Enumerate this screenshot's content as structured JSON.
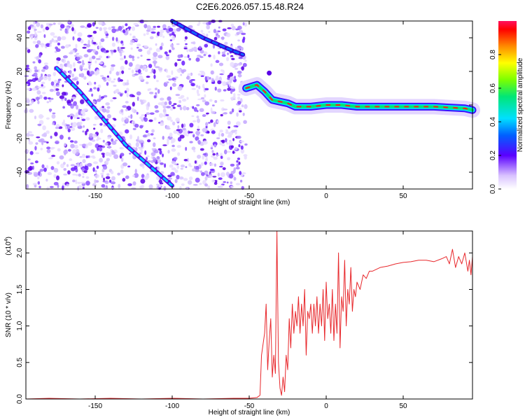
{
  "title": "C2E6.2026.057.15.48.R24",
  "chart_data": [
    {
      "type": "heatmap",
      "name": "spectrogram",
      "xlabel": "Height of straight line (km)",
      "ylabel": "Frequency (Hz)",
      "xlim": [
        -195,
        95
      ],
      "ylim": [
        -50,
        50
      ],
      "xticks": [
        -150,
        -100,
        -50,
        0,
        50
      ],
      "yticks": [
        -40,
        -20,
        0,
        20,
        40
      ],
      "colorbar": {
        "label": "Normalized spectral amplitude",
        "range": [
          0,
          1
        ],
        "ticks": [
          0.0,
          0.2,
          0.4,
          0.6,
          0.8
        ]
      },
      "features": [
        {
          "name": "noise-region",
          "x_range": [
            -195,
            -52
          ],
          "y_range": [
            -50,
            50
          ]
        },
        {
          "name": "diagonal-track-lower",
          "x": [
            -175,
            -160,
            -145,
            -130,
            -115,
            -100
          ],
          "y": [
            22,
            8,
            -8,
            -24,
            -36,
            -48
          ]
        },
        {
          "name": "diagonal-track-upper",
          "x": [
            -100,
            -90,
            -80,
            -70,
            -60,
            -54
          ],
          "y": [
            50,
            45,
            40,
            36,
            32,
            30
          ]
        },
        {
          "name": "main-carrier",
          "x": [
            -52,
            -45,
            -40,
            -35,
            -30,
            -25,
            -20,
            -10,
            0,
            10,
            20,
            30,
            50,
            70,
            90,
            95
          ],
          "y": [
            10,
            12,
            8,
            3,
            2,
            1,
            -1,
            -1,
            0,
            0,
            -1,
            -1,
            -1,
            -1,
            -2,
            -3
          ]
        }
      ]
    },
    {
      "type": "line",
      "name": "snr",
      "xlabel": "Height of straight line (km)",
      "ylabel": "SNR (10 * v/v)",
      "multiplier": "(x10",
      "multiplier_exp": "4",
      "xlim": [
        -195,
        95
      ],
      "ylim": [
        0,
        2.3
      ],
      "xticks": [
        -150,
        -100,
        -50,
        0,
        50
      ],
      "yticks": [
        0.0,
        0.5,
        1.0,
        1.5,
        2.0
      ],
      "series": [
        {
          "name": "SNR",
          "color": "#e8282c",
          "x": [
            -195,
            -180,
            -160,
            -140,
            -120,
            -100,
            -80,
            -60,
            -50,
            -45,
            -43,
            -42,
            -40,
            -39,
            -38,
            -37,
            -36,
            -35,
            -34,
            -33,
            -32,
            -31,
            -30,
            -29,
            -28,
            -27,
            -26,
            -25,
            -24,
            -23,
            -22,
            -21,
            -20,
            -19,
            -18,
            -17,
            -16,
            -15,
            -14,
            -13,
            -12,
            -11,
            -10,
            -9,
            -8,
            -7,
            -6,
            -5,
            -4,
            -3,
            -2,
            -1,
            0,
            1,
            2,
            3,
            4,
            5,
            6,
            7,
            8,
            9,
            10,
            11,
            12,
            13,
            14,
            15,
            16,
            17,
            18,
            19,
            20,
            22,
            24,
            26,
            28,
            30,
            35,
            40,
            45,
            50,
            55,
            60,
            65,
            70,
            75,
            78,
            80,
            82,
            84,
            86,
            88,
            90,
            92,
            93,
            94,
            95
          ],
          "y": [
            0.0,
            0.01,
            0.0,
            0.01,
            0.0,
            0.01,
            0.0,
            0.01,
            0.01,
            0.02,
            0.05,
            0.6,
            0.9,
            1.3,
            0.4,
            0.8,
            1.1,
            0.3,
            0.6,
            0.35,
            2.3,
            0.5,
            0.15,
            0.05,
            0.3,
            0.1,
            0.6,
            0.4,
            1.1,
            0.7,
            1.3,
            0.9,
            1.2,
            1.0,
            1.4,
            0.9,
            1.3,
            1.0,
            1.5,
            0.6,
            1.2,
            1.1,
            1.3,
            0.9,
            1.3,
            1.0,
            1.4,
            0.9,
            1.3,
            1.0,
            1.5,
            0.8,
            1.6,
            1.1,
            1.3,
            0.9,
            1.5,
            0.8,
            1.3,
            0.9,
            2.0,
            0.7,
            1.4,
            1.2,
            1.9,
            1.0,
            1.5,
            1.3,
            1.8,
            1.2,
            1.5,
            1.4,
            1.6,
            1.5,
            1.7,
            1.65,
            1.75,
            1.75,
            1.8,
            1.82,
            1.85,
            1.87,
            1.88,
            1.9,
            1.9,
            1.88,
            1.92,
            1.95,
            1.85,
            2.05,
            1.8,
            1.95,
            1.85,
            2.0,
            1.75,
            1.9,
            1.7,
            1.95
          ]
        }
      ]
    }
  ]
}
